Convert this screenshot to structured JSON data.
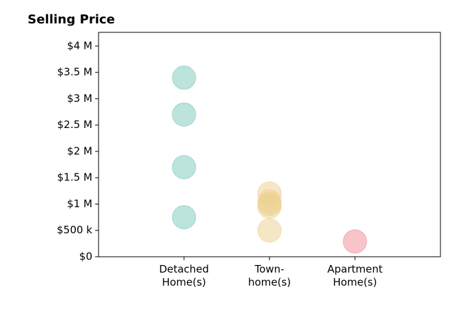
{
  "chart_data": {
    "type": "strip",
    "title": "Selling Price",
    "categories": [
      "Detached\nHome(s)",
      "Town-\nhome(s)",
      "Apartment\nHome(s)"
    ],
    "colors": [
      "#7cc7bb",
      "#eccf8e",
      "#f08a94"
    ],
    "values": [
      [
        3400000,
        2700000,
        1700000,
        750000
      ],
      [
        1200000,
        1050000,
        1000000,
        950000,
        500000
      ],
      [
        290000
      ]
    ],
    "ylim": [
      0,
      4260000
    ],
    "yticks": [
      {
        "value": 0,
        "label": "$0"
      },
      {
        "value": 500000,
        "label": "$500 k"
      },
      {
        "value": 1000000,
        "label": "$1 M"
      },
      {
        "value": 1500000,
        "label": "$1.5 M"
      },
      {
        "value": 2000000,
        "label": "$2 M"
      },
      {
        "value": 2500000,
        "label": "$2.5 M"
      },
      {
        "value": 3000000,
        "label": "$3 M"
      },
      {
        "value": 3500000,
        "label": "$3.5 M"
      },
      {
        "value": 4000000,
        "label": "$4 M"
      }
    ]
  }
}
